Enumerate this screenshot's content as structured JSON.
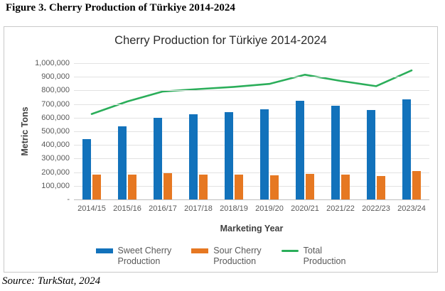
{
  "figure_caption": "Figure 3. Cherry Production of Türkiye 2014-2024",
  "source_note": "Source: TurkStat, 2024",
  "chart_data": {
    "type": "bar",
    "subtype": "grouped bars with line overlay",
    "title": "Cherry Production for Türkiye 2014-2024",
    "xlabel": "Marketing Year",
    "ylabel": "Metric Tons",
    "ylim": [
      0,
      1000000
    ],
    "ytick_step": 100000,
    "ytick_labels": [
      "-",
      "100,000",
      "200,000",
      "300,000",
      "400,000",
      "500,000",
      "600,000",
      "700,000",
      "800,000",
      "900,000",
      "1,000,000"
    ],
    "grid": true,
    "legend_position": "bottom",
    "categories": [
      "2014/15",
      "2015/16",
      "2016/17",
      "2017/18",
      "2018/19",
      "2019/20",
      "2020/21",
      "2021/22",
      "2022/23",
      "2023/24"
    ],
    "series": [
      {
        "name": "Sweet Cherry Production",
        "kind": "bar",
        "color": "#1272bb",
        "values": [
          445000,
          535000,
          600000,
          626000,
          640000,
          664000,
          724000,
          688000,
          656000,
          736000
        ]
      },
      {
        "name": "Sour Cherry Production",
        "kind": "bar",
        "color": "#e67822",
        "values": [
          180000,
          182000,
          191000,
          180000,
          181000,
          178000,
          186000,
          180000,
          170000,
          206000
        ]
      },
      {
        "name": "Total Production",
        "kind": "line",
        "color": "#2bae5a",
        "values": [
          627000,
          719000,
          792000,
          810000,
          826000,
          848000,
          915000,
          870000,
          831000,
          947000
        ]
      }
    ]
  }
}
